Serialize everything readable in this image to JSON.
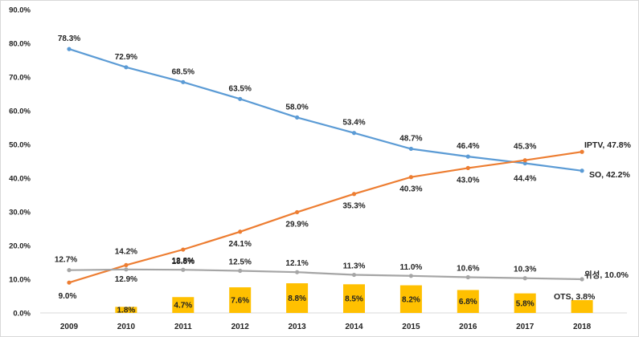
{
  "chart_data": {
    "type": "line",
    "title": "",
    "xlabel": "",
    "ylabel": "",
    "ylim": [
      0,
      90
    ],
    "y_ticks": [
      "0.0%",
      "10.0%",
      "20.0%",
      "30.0%",
      "40.0%",
      "50.0%",
      "60.0%",
      "70.0%",
      "80.0%",
      "90.0%"
    ],
    "categories": [
      "2009",
      "2010",
      "2011",
      "2012",
      "2013",
      "2014",
      "2015",
      "2016",
      "2017",
      "2018"
    ],
    "grid": false,
    "legend": "none",
    "series": [
      {
        "name": "SO",
        "type": "line",
        "color": "#5b9bd5",
        "values": [
          78.3,
          72.9,
          68.5,
          63.5,
          58.0,
          53.4,
          48.7,
          46.4,
          44.4,
          42.2
        ],
        "labels": [
          "78.3%",
          "72.9%",
          "68.5%",
          "63.5%",
          "58.0%",
          "53.4%",
          "48.7%",
          "46.4%",
          "44.4%",
          ""
        ],
        "end_label": "SO, 42.2%"
      },
      {
        "name": "IPTV",
        "type": "line",
        "color": "#ed7d31",
        "values": [
          9.0,
          14.2,
          18.8,
          24.1,
          29.9,
          35.3,
          40.3,
          43.0,
          45.3,
          47.8
        ],
        "labels": [
          "9.0%",
          "14.2%",
          "18.8%",
          "24.1%",
          "29.9%",
          "35.3%",
          "40.3%",
          "43.0%",
          "45.3%",
          ""
        ],
        "end_label": "IPTV, 47.8%"
      },
      {
        "name": "위성",
        "type": "line",
        "color": "#a5a5a5",
        "values": [
          12.7,
          12.9,
          12.8,
          12.5,
          12.1,
          11.3,
          11.0,
          10.6,
          10.3,
          10.0
        ],
        "labels": [
          "12.7%",
          "12.9%",
          "12.8%",
          "12.5%",
          "12.1%",
          "11.3%",
          "11.0%",
          "10.6%",
          "10.3%",
          ""
        ],
        "end_label": "위성, 10.0%"
      },
      {
        "name": "OTS",
        "type": "bar",
        "color": "#ffc000",
        "values": [
          null,
          1.8,
          4.7,
          7.6,
          8.8,
          8.5,
          8.2,
          6.8,
          5.8,
          3.8
        ],
        "labels": [
          "",
          "1.8%",
          "4.7%",
          "7.6%",
          "8.8%",
          "8.5%",
          "8.2%",
          "6.8%",
          "5.8%",
          ""
        ],
        "end_label": "OTS, 3.8%"
      }
    ]
  }
}
